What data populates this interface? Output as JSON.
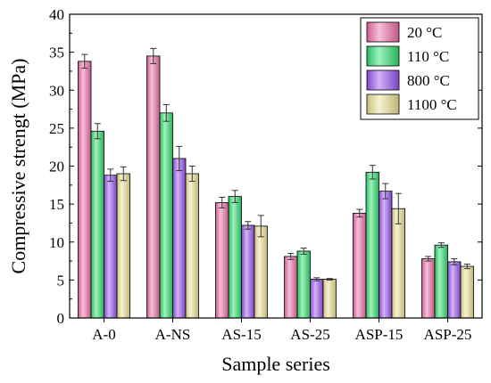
{
  "chart_data": {
    "type": "bar",
    "title": "",
    "xlabel": "Sample series",
    "ylabel": "Compressive strengt (MPa)",
    "ylim": [
      0,
      40
    ],
    "yticks": [
      0,
      5,
      10,
      15,
      20,
      25,
      30,
      35,
      40
    ],
    "grid": false,
    "legend_position": "top-right",
    "error_bars": true,
    "categories": [
      "A-0",
      "A-NS",
      "AS-15",
      "AS-25",
      "ASP-15",
      "ASP-25"
    ],
    "series": [
      {
        "name": "20 °C",
        "color": "#f06ea8",
        "values": [
          33.8,
          34.5,
          15.2,
          8.1,
          13.8,
          7.8
        ],
        "errors": [
          0.9,
          1.0,
          0.7,
          0.4,
          0.5,
          0.3
        ]
      },
      {
        "name": "110 °C",
        "color": "#2ee06e",
        "values": [
          24.6,
          27.0,
          16.0,
          8.8,
          19.2,
          9.6
        ],
        "errors": [
          1.0,
          1.1,
          0.8,
          0.4,
          0.9,
          0.3
        ]
      },
      {
        "name": "800 °C",
        "color": "#9a55f0",
        "values": [
          18.8,
          21.0,
          12.2,
          5.1,
          16.7,
          7.4
        ],
        "errors": [
          0.8,
          1.6,
          0.5,
          0.2,
          1.0,
          0.4
        ]
      },
      {
        "name": "1100 °C",
        "color": "#eee295",
        "values": [
          19.0,
          19.0,
          12.1,
          5.1,
          14.4,
          6.8
        ],
        "errors": [
          0.9,
          1.0,
          1.4,
          0.1,
          2.0,
          0.3
        ]
      }
    ]
  }
}
